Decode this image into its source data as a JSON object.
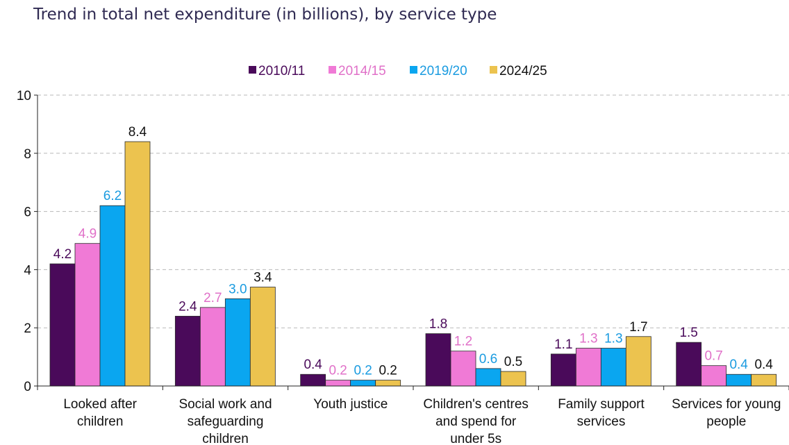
{
  "title": "Trend in total net expenditure (in billions), by service type",
  "chart_data": {
    "type": "bar",
    "title": "Trend in total net expenditure (in billions), by service type",
    "xlabel": "",
    "ylabel": "",
    "ylim": [
      0,
      10
    ],
    "yticks": [
      "0",
      "2",
      "4",
      "6",
      "8",
      "10"
    ],
    "grid": true,
    "legend": "top-center",
    "categories": [
      [
        "Looked after",
        "children"
      ],
      [
        "Social work and",
        "safeguarding",
        "children"
      ],
      [
        "Youth justice"
      ],
      [
        "Children's centres",
        "and spend for",
        "under 5s"
      ],
      [
        "Family support",
        "services"
      ],
      [
        "Services for young",
        "people"
      ]
    ],
    "series": [
      {
        "name": "2010/11",
        "color": "#4a0a5a",
        "label_color": "#4a0a5a",
        "values": [
          4.2,
          2.4,
          0.4,
          1.8,
          1.1,
          1.5
        ],
        "labels": [
          "4.2",
          "2.4",
          "0.4",
          "1.8",
          "1.1",
          "1.5"
        ]
      },
      {
        "name": "2014/15",
        "color": "#f07ad6",
        "label_color": "#e070c8",
        "values": [
          4.9,
          2.7,
          0.2,
          1.2,
          1.3,
          0.7
        ],
        "labels": [
          "4.9",
          "2.7",
          "0.2",
          "1.2",
          "1.3",
          "0.7"
        ]
      },
      {
        "name": "2019/20",
        "color": "#0aa6f0",
        "label_color": "#1a9be0",
        "values": [
          6.2,
          3.0,
          0.2,
          0.6,
          1.3,
          0.4
        ],
        "labels": [
          "6.2",
          "3.0",
          "0.2",
          "0.6",
          "1.3",
          "0.4"
        ]
      },
      {
        "name": "2024/25",
        "color": "#ecc34f",
        "label_color": "#111111",
        "values": [
          8.4,
          3.4,
          0.2,
          0.5,
          1.7,
          0.4
        ],
        "labels": [
          "8.4",
          "3.4",
          "0.2",
          "0.5",
          "1.7",
          "0.4"
        ]
      }
    ]
  }
}
